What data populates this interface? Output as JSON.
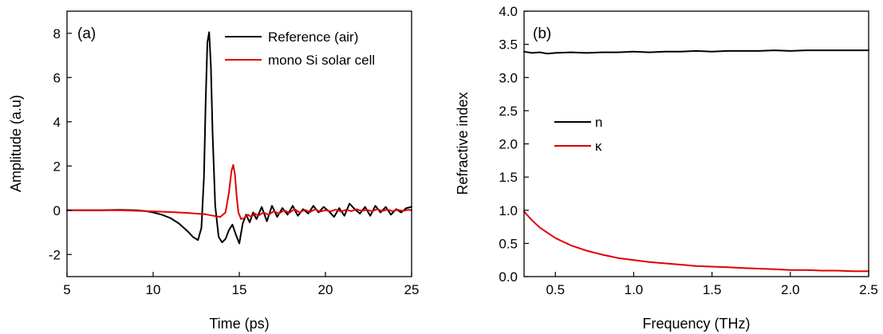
{
  "chart_data": [
    {
      "type": "line",
      "panel_label": "(a)",
      "xlabel": "Time (ps)",
      "ylabel": "Amplitude (a.u)",
      "xlim": [
        5,
        25
      ],
      "ylim": [
        -3,
        9
      ],
      "xticks": [
        "5",
        "10",
        "15",
        "20",
        "25"
      ],
      "yticks": [
        "-2",
        "0",
        "2",
        "4",
        "6",
        "8"
      ],
      "grid": false,
      "legend_position": "top-right",
      "series": [
        {
          "name": "Reference (air)",
          "color": "#000000",
          "x": [
            5,
            7,
            8,
            9,
            9.5,
            10,
            10.5,
            11,
            11.5,
            12,
            12.3,
            12.6,
            12.8,
            12.95,
            13.05,
            13.15,
            13.25,
            13.35,
            13.45,
            13.6,
            13.8,
            14.0,
            14.2,
            14.4,
            14.6,
            14.8,
            15.0,
            15.2,
            15.4,
            15.6,
            15.8,
            16.0,
            16.3,
            16.6,
            16.9,
            17.2,
            17.5,
            17.8,
            18.1,
            18.4,
            18.7,
            19.0,
            19.3,
            19.6,
            19.9,
            20.2,
            20.5,
            20.8,
            21.1,
            21.4,
            21.7,
            22.0,
            22.3,
            22.6,
            22.9,
            23.2,
            23.5,
            23.8,
            24.1,
            24.4,
            24.7,
            25
          ],
          "values": [
            0,
            0,
            0.02,
            0,
            -0.03,
            -0.1,
            -0.2,
            -0.35,
            -0.6,
            -0.95,
            -1.2,
            -1.35,
            -0.8,
            1.5,
            5.0,
            7.6,
            8.05,
            6.5,
            3.5,
            0.2,
            -1.2,
            -1.45,
            -1.3,
            -0.9,
            -0.65,
            -1.1,
            -1.5,
            -0.6,
            -0.2,
            -0.55,
            -0.1,
            -0.4,
            0.15,
            -0.5,
            0.2,
            -0.3,
            0.1,
            -0.2,
            0.2,
            -0.25,
            0.05,
            -0.15,
            0.2,
            -0.1,
            0.15,
            -0.05,
            -0.3,
            0.1,
            -0.25,
            0.3,
            0.05,
            -0.15,
            0.15,
            -0.25,
            0.2,
            -0.1,
            0.15,
            -0.2,
            0.05,
            -0.1,
            0.1,
            0.15
          ]
        },
        {
          "name": "mono Si solar cell",
          "color": "#e00000",
          "x": [
            5,
            8,
            10,
            11,
            12,
            13,
            13.5,
            13.9,
            14.2,
            14.4,
            14.55,
            14.65,
            14.75,
            14.85,
            14.95,
            15.1,
            15.3,
            15.5,
            15.7,
            15.9,
            16.1,
            16.4,
            16.7,
            17.0,
            17.3,
            17.6,
            17.9,
            18.2,
            18.5,
            18.8,
            19.1,
            19.4,
            19.7,
            20.0,
            20.3,
            20.6,
            20.9,
            21.2,
            21.5,
            21.8,
            22.1,
            22.4,
            22.7,
            23.0,
            23.3,
            23.6,
            23.9,
            24.2,
            24.5,
            24.8,
            25
          ],
          "values": [
            0,
            0,
            -0.05,
            -0.08,
            -0.12,
            -0.18,
            -0.25,
            -0.3,
            -0.1,
            0.8,
            1.8,
            2.05,
            1.6,
            0.6,
            -0.1,
            -0.4,
            -0.35,
            -0.2,
            -0.3,
            -0.15,
            -0.25,
            -0.1,
            -0.2,
            -0.05,
            -0.15,
            0.0,
            -0.12,
            0.05,
            -0.1,
            0.02,
            -0.08,
            0.04,
            -0.06,
            0.0,
            -0.05,
            0.03,
            -0.06,
            0.02,
            -0.04,
            0.05,
            -0.03,
            0.02,
            -0.05,
            0.04,
            -0.03,
            0.03,
            -0.04,
            0.02,
            -0.03,
            0.02,
            0.0
          ]
        }
      ]
    },
    {
      "type": "line",
      "panel_label": "(b)",
      "xlabel": "Frequency (THz)",
      "ylabel": "Refractive index",
      "xlim": [
        0.3,
        2.5
      ],
      "ylim": [
        0,
        4
      ],
      "xticks": [
        "0.5",
        "1.0",
        "1.5",
        "2.0",
        "2.5"
      ],
      "yticks": [
        "0.0",
        "0.5",
        "1.0",
        "1.5",
        "2.0",
        "2.5",
        "3.0",
        "3.5",
        "4.0"
      ],
      "grid": false,
      "legend_position": "center-left",
      "series": [
        {
          "name": "n",
          "color": "#000000",
          "x": [
            0.3,
            0.35,
            0.4,
            0.45,
            0.5,
            0.6,
            0.7,
            0.8,
            0.9,
            1.0,
            1.1,
            1.2,
            1.3,
            1.4,
            1.5,
            1.6,
            1.7,
            1.8,
            1.9,
            2.0,
            2.1,
            2.2,
            2.3,
            2.4,
            2.5
          ],
          "values": [
            3.39,
            3.37,
            3.38,
            3.36,
            3.37,
            3.38,
            3.37,
            3.38,
            3.38,
            3.39,
            3.38,
            3.39,
            3.39,
            3.4,
            3.39,
            3.4,
            3.4,
            3.4,
            3.41,
            3.4,
            3.41,
            3.41,
            3.41,
            3.41,
            3.41
          ]
        },
        {
          "name": "κ",
          "color": "#e00000",
          "x": [
            0.3,
            0.35,
            0.4,
            0.45,
            0.5,
            0.6,
            0.7,
            0.8,
            0.9,
            1.0,
            1.1,
            1.2,
            1.3,
            1.4,
            1.5,
            1.6,
            1.7,
            1.8,
            1.9,
            2.0,
            2.1,
            2.2,
            2.3,
            2.4,
            2.5
          ],
          "values": [
            0.98,
            0.85,
            0.74,
            0.66,
            0.58,
            0.47,
            0.39,
            0.33,
            0.28,
            0.25,
            0.22,
            0.2,
            0.18,
            0.16,
            0.15,
            0.14,
            0.13,
            0.12,
            0.11,
            0.1,
            0.1,
            0.09,
            0.09,
            0.08,
            0.08
          ]
        }
      ]
    }
  ]
}
